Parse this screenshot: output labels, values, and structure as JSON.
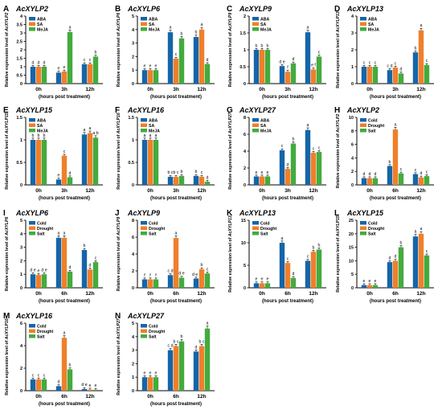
{
  "figure": {
    "colors": {
      "c0": "#1565a8",
      "c1": "#f07f2a",
      "c2": "#43ab3e"
    },
    "shared_xlabel": "(hours post treatment)",
    "ylabel_prefix": "Relative expression level of "
  },
  "chart_data": [
    {
      "type": "bar",
      "panel": "A",
      "title": "AcXYLP2",
      "categories": [
        "0h",
        "3h",
        "12h"
      ],
      "series": [
        {
          "name": "ABA",
          "values": [
            1.0,
            0.65,
            1.15
          ]
        },
        {
          "name": "SA",
          "values": [
            1.0,
            0.72,
            1.15
          ]
        },
        {
          "name": "MeJA",
          "values": [
            1.0,
            3.05,
            1.6
          ]
        }
      ],
      "letters": [
        [
          "d",
          "e",
          "c"
        ],
        [
          "d",
          "e",
          "c"
        ],
        [
          "d",
          "a",
          "b"
        ]
      ],
      "ylim": [
        0,
        4
      ],
      "yticks": [
        0,
        0.5,
        1,
        1.5,
        2,
        2.5,
        3,
        3.5,
        4
      ],
      "ylabel": "AcXYLP2"
    },
    {
      "type": "bar",
      "panel": "B",
      "title": "AcXYLP6",
      "categories": [
        "0h",
        "3h",
        "12h"
      ],
      "series": [
        {
          "name": "ABA",
          "values": [
            1.0,
            3.8,
            3.45
          ]
        },
        {
          "name": "SA",
          "values": [
            1.0,
            1.85,
            4.0
          ]
        },
        {
          "name": "MeJA",
          "values": [
            1.0,
            3.35,
            1.45
          ]
        }
      ],
      "letters": [
        [
          "e",
          "a",
          "b"
        ],
        [
          "e",
          "c",
          "a"
        ],
        [
          "e",
          "b",
          "d"
        ]
      ],
      "ylim": [
        0,
        5
      ],
      "yticks": [
        0,
        1,
        2,
        3,
        4,
        5
      ],
      "ylabel": "AcXYLP6"
    },
    {
      "type": "bar",
      "panel": "C",
      "title": "AcXYLP9",
      "categories": [
        "0h",
        "3h",
        "12h"
      ],
      "series": [
        {
          "name": "ABA",
          "values": [
            1.0,
            0.52,
            1.52
          ]
        },
        {
          "name": "SA",
          "values": [
            1.0,
            0.35,
            0.42
          ]
        },
        {
          "name": "MeJA",
          "values": [
            1.0,
            0.6,
            0.8
          ]
        }
      ],
      "letters": [
        [
          "b",
          "d e",
          "a"
        ],
        [
          "b",
          "f",
          "e f"
        ],
        [
          "b",
          "d",
          "c"
        ]
      ],
      "ylim": [
        0,
        2.0
      ],
      "yticks": [
        0,
        0.5,
        1.0,
        1.5,
        2.0
      ],
      "ylabel": "AcXYLP9"
    },
    {
      "type": "bar",
      "panel": "D",
      "title": "AcXYLP13",
      "categories": [
        "0h",
        "3h",
        "12h"
      ],
      "series": [
        {
          "name": "ABA",
          "values": [
            1.0,
            0.8,
            1.85
          ]
        },
        {
          "name": "SA",
          "values": [
            1.0,
            0.95,
            3.15
          ]
        },
        {
          "name": "MeJA",
          "values": [
            1.0,
            0.6,
            1.1
          ]
        }
      ],
      "letters": [
        [
          "c",
          "c d",
          "b"
        ],
        [
          "c",
          "c",
          "a"
        ],
        [
          "c",
          "d",
          "c"
        ]
      ],
      "ylim": [
        0,
        4
      ],
      "yticks": [
        0,
        1,
        2,
        3,
        4
      ],
      "ylabel": "AcXYLP13"
    },
    {
      "type": "bar",
      "panel": "E",
      "title": "AcXYLP15",
      "categories": [
        "0h",
        "3h",
        "12h"
      ],
      "series": [
        {
          "name": "ABA",
          "values": [
            1.0,
            0.12,
            1.12
          ]
        },
        {
          "name": "SA",
          "values": [
            1.0,
            0.65,
            1.15
          ]
        },
        {
          "name": "MeJA",
          "values": [
            1.0,
            0.17,
            1.05
          ]
        }
      ],
      "letters": [
        [
          "b",
          "e",
          "a"
        ],
        [
          "b",
          "c",
          "a"
        ],
        [
          "b",
          "d",
          "a b"
        ]
      ],
      "ylim": [
        0,
        1.5
      ],
      "yticks": [
        0,
        0.5,
        1.0,
        1.5
      ],
      "ylabel": "AcXYLP15"
    },
    {
      "type": "bar",
      "panel": "F",
      "title": "AcXYLP16",
      "categories": [
        "0h",
        "3h",
        "12h"
      ],
      "series": [
        {
          "name": "ABA",
          "values": [
            1.0,
            0.18,
            0.2
          ]
        },
        {
          "name": "SA",
          "values": [
            1.0,
            0.18,
            0.18
          ]
        },
        {
          "name": "MeJA",
          "values": [
            1.0,
            0.2,
            0.07
          ]
        }
      ],
      "letters": [
        [
          "a",
          "b c",
          "b"
        ],
        [
          "a",
          "b c",
          "c"
        ],
        [
          "a",
          "b",
          "d"
        ]
      ],
      "ylim": [
        0,
        1.5
      ],
      "yticks": [
        0,
        0.5,
        1.0,
        1.5
      ],
      "ylabel": "AcXYLP16"
    },
    {
      "type": "bar",
      "panel": "G",
      "title": "AcXYLP27",
      "categories": [
        "0h",
        "3h",
        "12h"
      ],
      "series": [
        {
          "name": "ABA",
          "values": [
            1.0,
            4.1,
            6.5
          ]
        },
        {
          "name": "SA",
          "values": [
            1.0,
            1.9,
            3.8
          ]
        },
        {
          "name": "MeJA",
          "values": [
            1.0,
            4.9,
            3.9
          ]
        }
      ],
      "letters": [
        [
          "e",
          "c",
          "a"
        ],
        [
          "e",
          "d",
          "c"
        ],
        [
          "e",
          "b",
          "c"
        ]
      ],
      "ylim": [
        0,
        8
      ],
      "yticks": [
        0,
        2,
        4,
        6,
        8
      ],
      "ylabel": "AcXYLP27"
    },
    {
      "type": "bar",
      "panel": "H",
      "title": "AcXYLP2",
      "categories": [
        "0h",
        "6h",
        "12h"
      ],
      "series": [
        {
          "name": "Cold",
          "values": [
            1.0,
            2.8,
            1.6
          ]
        },
        {
          "name": "Drought",
          "values": [
            1.0,
            8.2,
            1.1
          ]
        },
        {
          "name": "Salt",
          "values": [
            1.0,
            1.7,
            1.3
          ]
        }
      ],
      "letters": [
        [
          "d",
          "b",
          "c"
        ],
        [
          "d",
          "a",
          "d"
        ],
        [
          "d",
          "c",
          "c"
        ]
      ],
      "ylim": [
        0,
        10
      ],
      "yticks": [
        0,
        2,
        4,
        6,
        8,
        10
      ],
      "ylabel": "AcXYLP2"
    },
    {
      "type": "bar",
      "panel": "I",
      "title": "AcXYLP6",
      "categories": [
        "0h",
        "6h",
        "12h"
      ],
      "series": [
        {
          "name": "Cold",
          "values": [
            1.0,
            3.7,
            2.8
          ]
        },
        {
          "name": "Drought",
          "values": [
            0.95,
            3.7,
            1.35
          ]
        },
        {
          "name": "Salt",
          "values": [
            1.0,
            1.2,
            1.9
          ]
        }
      ],
      "letters": [
        [
          "d e",
          "a",
          "b"
        ],
        [
          "e",
          "a",
          "d"
        ],
        [
          "d e",
          "d",
          "c"
        ]
      ],
      "ylim": [
        0,
        5
      ],
      "yticks": [
        0,
        1,
        2,
        3,
        4,
        5
      ],
      "ylabel": "AcXYLP6"
    },
    {
      "type": "bar",
      "panel": "J",
      "title": "AcXYLP9",
      "categories": [
        "0h",
        "6h",
        "12h"
      ],
      "series": [
        {
          "name": "Cold",
          "values": [
            1.0,
            1.5,
            1.1
          ]
        },
        {
          "name": "Drought",
          "values": [
            1.0,
            5.9,
            2.2
          ]
        },
        {
          "name": "Salt",
          "values": [
            1.0,
            1.2,
            1.7
          ]
        }
      ],
      "letters": [
        [
          "f",
          "c d",
          "d e f"
        ],
        [
          "f",
          "a",
          "b"
        ],
        [
          "f",
          "d e",
          "c"
        ]
      ],
      "ylim": [
        0,
        8
      ],
      "yticks": [
        0,
        2,
        4,
        6,
        8
      ],
      "ylabel": "AcXYLP9"
    },
    {
      "type": "bar",
      "panel": "K",
      "title": "AcXYLP13",
      "categories": [
        "0h",
        "6h",
        "12h"
      ],
      "series": [
        {
          "name": "Cold",
          "values": [
            1.0,
            10.0,
            6.0
          ]
        },
        {
          "name": "Drought",
          "values": [
            1.0,
            5.5,
            8.0
          ]
        },
        {
          "name": "Salt",
          "values": [
            1.0,
            2.2,
            8.5
          ]
        }
      ],
      "letters": [
        [
          "e",
          "a",
          "c"
        ],
        [
          "e",
          "c",
          "b"
        ],
        [
          "e",
          "d",
          "b"
        ]
      ],
      "ylim": [
        0,
        15
      ],
      "yticks": [
        0,
        5,
        10,
        15
      ],
      "ylabel": "AcXYLP13"
    },
    {
      "type": "bar",
      "panel": "L",
      "title": "AcXYLP15",
      "categories": [
        "0h",
        "6h",
        "12h"
      ],
      "series": [
        {
          "name": "Cold",
          "values": [
            1.0,
            9.5,
            19.0
          ]
        },
        {
          "name": "Drought",
          "values": [
            1.0,
            10.0,
            20.0
          ]
        },
        {
          "name": "Salt",
          "values": [
            1.0,
            15.0,
            12.0
          ]
        }
      ],
      "letters": [
        [
          "e",
          "d",
          "a"
        ],
        [
          "e",
          "d",
          "a"
        ],
        [
          "e",
          "b",
          "c"
        ]
      ],
      "ylim": [
        0,
        25
      ],
      "yticks": [
        0,
        5,
        10,
        15,
        20,
        25
      ],
      "ylabel": "AcXYLP15"
    },
    {
      "type": "bar",
      "panel": "M",
      "title": "AcXYLP16",
      "categories": [
        "0h",
        "6h",
        "12h"
      ],
      "series": [
        {
          "name": "Cold",
          "values": [
            1.0,
            0.4,
            0.15
          ]
        },
        {
          "name": "Drought",
          "values": [
            1.0,
            4.7,
            0.1
          ]
        },
        {
          "name": "Salt",
          "values": [
            1.0,
            1.9,
            0.08
          ]
        }
      ],
      "letters": [
        [
          "c",
          "d",
          "d e"
        ],
        [
          "c",
          "a",
          "e"
        ],
        [
          "c",
          "b",
          "e"
        ]
      ],
      "ylim": [
        0,
        6
      ],
      "yticks": [
        0,
        2,
        4,
        6
      ],
      "ylabel": "AcXYLP16"
    },
    {
      "type": "bar",
      "panel": "N",
      "title": "AcXYLP27",
      "categories": [
        "0h",
        "6h",
        "12h"
      ],
      "series": [
        {
          "name": "Cold",
          "values": [
            1.0,
            3.0,
            2.9
          ]
        },
        {
          "name": "Drought",
          "values": [
            1.0,
            3.3,
            3.3
          ]
        },
        {
          "name": "Salt",
          "values": [
            1.0,
            3.65,
            4.6
          ]
        }
      ],
      "letters": [
        [
          "e",
          "c d",
          "d"
        ],
        [
          "e",
          "b c",
          "b c"
        ],
        [
          "e",
          "b",
          "a"
        ]
      ],
      "ylim": [
        0,
        5
      ],
      "yticks": [
        0,
        1,
        2,
        3,
        4,
        5
      ],
      "ylabel": "AcXYLP27"
    }
  ]
}
